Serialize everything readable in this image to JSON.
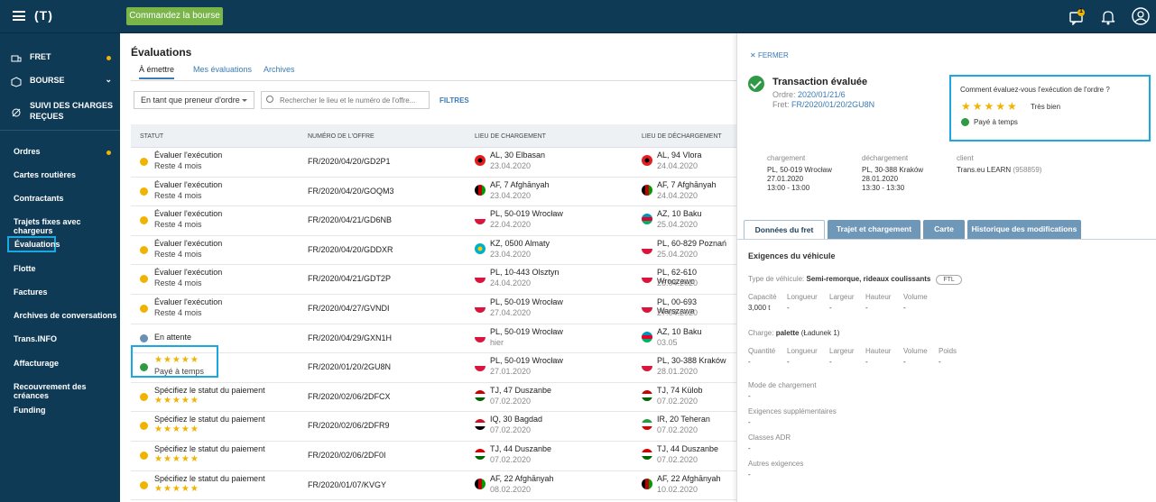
{
  "topbar": {
    "logo": "(T)",
    "order_button": "Commandez la bourse",
    "notif_badge": "1"
  },
  "sidebar": {
    "top_items": [
      {
        "label": "FRET"
      },
      {
        "label": "BOURSE"
      },
      {
        "label": "SUIVI DES CHARGES"
      },
      {
        "label": "REÇUES"
      }
    ],
    "items": [
      {
        "label": "Ordres"
      },
      {
        "label": "Cartes routières"
      },
      {
        "label": "Contractants"
      },
      {
        "label": "Trajets fixes avec chargeurs"
      },
      {
        "label": "Évaluations"
      },
      {
        "label": "Flotte"
      },
      {
        "label": "Factures"
      },
      {
        "label": "Archives de conversations"
      },
      {
        "label": "Trans.INFO"
      },
      {
        "label": "Affacturage"
      },
      {
        "label": "Recouvrement des créances"
      },
      {
        "label": "Funding"
      }
    ]
  },
  "main": {
    "title": "Évaluations",
    "tabs": [
      {
        "label": "À émettre"
      },
      {
        "label": "Mes évaluations"
      },
      {
        "label": "Archives"
      }
    ],
    "role_select": "En tant que preneur d'ordre",
    "search_placeholder": "Rechercher le lieu et le numéro de l'offre...",
    "filters": "FILTRES",
    "columns": [
      "STATUT",
      "NUMÉRO DE L'OFFRE",
      "LIEU DE CHARGEMENT",
      "LIEU DE DÉCHARGEMENT"
    ],
    "rows": [
      {
        "status": "Évaluer l'exécution",
        "sub": "Reste 4 mois",
        "kind": "warn",
        "number": "FR/2020/04/20/GD2P1",
        "load": "AL, 30 Elbasan",
        "load_date": "23.04.2020",
        "unload": "AL, 94 Vlora",
        "unload_date": "24.04.2020",
        "lf": "al",
        "uf": "al"
      },
      {
        "status": "Évaluer l'exécution",
        "sub": "Reste 4 mois",
        "kind": "warn",
        "number": "FR/2020/04/20/GOQM3",
        "load": "AF, 7 Afghānyah",
        "load_date": "23.04.2020",
        "unload": "AF, 7 Afghānyah",
        "unload_date": "24.04.2020",
        "lf": "af",
        "uf": "af"
      },
      {
        "status": "Évaluer l'exécution",
        "sub": "Reste 4 mois",
        "kind": "warn",
        "number": "FR/2020/04/21/GD6NB",
        "load": "PL, 50-019 Wrocław",
        "load_date": "22.04.2020",
        "unload": "AZ, 10 Baku",
        "unload_date": "25.04.2020",
        "lf": "pl",
        "uf": "az"
      },
      {
        "status": "Évaluer l'exécution",
        "sub": "Reste 4 mois",
        "kind": "warn",
        "number": "FR/2020/04/20/GDDXR",
        "load": "KZ, 0500 Almaty",
        "load_date": "23.04.2020",
        "unload": "PL, 60-829 Poznań",
        "unload_date": "25.04.2020",
        "lf": "kz",
        "uf": "pl"
      },
      {
        "status": "Évaluer l'exécution",
        "sub": "Reste 4 mois",
        "kind": "warn",
        "number": "FR/2020/04/21/GDT2P",
        "load": "PL, 10-443 Olsztyn",
        "load_date": "24.04.2020",
        "unload": "PL, 62-610 Wroczewo",
        "unload_date": "26.04.2020",
        "lf": "pl",
        "uf": "pl"
      },
      {
        "status": "Évaluer l'exécution",
        "sub": "Reste 4 mois",
        "kind": "warn",
        "number": "FR/2020/04/27/GVNDI",
        "load": "PL, 50-019 Wrocław",
        "load_date": "27.04.2020",
        "unload": "PL, 00-693 Warszawa",
        "unload_date": "27.04.2020",
        "lf": "pl",
        "uf": "pl"
      },
      {
        "status": "En attente",
        "sub": "",
        "kind": "wait",
        "number": "FR/2020/04/29/GXN1H",
        "load": "PL, 50-019 Wrocław",
        "load_date": "hier",
        "unload": "AZ, 10 Baku",
        "unload_date": "03.05",
        "lf": "pl",
        "uf": "az"
      },
      {
        "status": "",
        "sub": "Payé à temps",
        "kind": "ok",
        "stars": "★★★★★",
        "number": "FR/2020/01/20/2GU8N",
        "load": "PL, 50-019 Wrocław",
        "load_date": "27.01.2020",
        "unload": "PL, 30-388 Kraków",
        "unload_date": "28.01.2020",
        "lf": "pl",
        "uf": "pl"
      },
      {
        "status": "Spécifiez le statut du paiement",
        "sub": "",
        "kind": "warn",
        "stars": "★★★★★",
        "number": "FR/2020/02/06/2DFCX",
        "load": "TJ, 47 Duszanbe",
        "load_date": "07.02.2020",
        "unload": "TJ, 74 Külob",
        "unload_date": "07.02.2020",
        "lf": "tj",
        "uf": "tj"
      },
      {
        "status": "Spécifiez le statut du paiement",
        "sub": "",
        "kind": "warn",
        "stars": "★★★★★",
        "number": "FR/2020/02/06/2DFR9",
        "load": "IQ, 30 Bagdad",
        "load_date": "07.02.2020",
        "unload": "IR, 20 Teheran",
        "unload_date": "07.02.2020",
        "lf": "iq",
        "uf": "ir"
      },
      {
        "status": "Spécifiez le statut du paiement",
        "sub": "",
        "kind": "warn",
        "stars": "★★★★★",
        "number": "FR/2020/02/06/2DF0I",
        "load": "TJ, 44 Duszanbe",
        "load_date": "07.02.2020",
        "unload": "TJ, 44 Duszanbe",
        "unload_date": "07.02.2020",
        "lf": "tj",
        "uf": "tj"
      },
      {
        "status": "Spécifiez le statut du paiement",
        "sub": "",
        "kind": "warn",
        "stars": "★★★★★",
        "number": "FR/2020/01/07/KVGY",
        "load": "AF, 22 Afghānyah",
        "load_date": "08.02.2020",
        "unload": "AF, 22 Afghānyah",
        "unload_date": "10.02.2020",
        "lf": "af",
        "uf": "af"
      }
    ]
  },
  "panel": {
    "close": "FERMER",
    "title": "Transaction évaluée",
    "order_label": "Ordre:",
    "order_value": "2020/01/21/6",
    "fret_label": "Fret:",
    "fret_value": "FR/2020/01/20/2GU8N",
    "rating_question": "Comment évaluez-vous l'exécution de l'ordre ?",
    "rating_stars": "★★★★★",
    "rating_label": "Très bien",
    "paid_label": "Payé à temps",
    "loading": {
      "header": "chargement",
      "place": "PL, 50-019 Wrocław",
      "date": "27.01.2020",
      "time": "13:00 - 13:00"
    },
    "unloading": {
      "header": "déchargement",
      "place": "PL, 30-388 Kraków",
      "date": "28.01.2020",
      "time": "13:30 - 13:30"
    },
    "client": {
      "header": "client",
      "name": "Trans.eu LEARN",
      "id": "(958859)"
    },
    "tabs": [
      "Données du fret",
      "Trajet et chargement",
      "Carte",
      "Historique des modifications"
    ],
    "vehicle_header": "Exigences du véhicule",
    "vehicle_type_label": "Type de véhicule:",
    "vehicle_type": "Semi-remorque, rideaux coulissants",
    "ftl": "FTL",
    "dims_labels": [
      "Capacité",
      "Longueur",
      "Largeur",
      "Hauteur",
      "Volume"
    ],
    "dims_values": [
      "3,000 t",
      "-",
      "-",
      "-",
      "-"
    ],
    "charge_label": "Charge:",
    "charge_value": "palette",
    "charge_extra": "(Ładunek 1)",
    "charge_labels": [
      "Quantité",
      "Longueur",
      "Largeur",
      "Hauteur",
      "Volume",
      "Poids"
    ],
    "charge_values": [
      "-",
      "-",
      "-",
      "-",
      "-",
      "-"
    ],
    "sections": [
      {
        "label": "Mode de chargement",
        "value": "-"
      },
      {
        "label": "Exigences supplémentaires",
        "value": "-"
      },
      {
        "label": "Classes ADR",
        "value": "-"
      },
      {
        "label": "Autres exigences",
        "value": "-"
      }
    ]
  }
}
